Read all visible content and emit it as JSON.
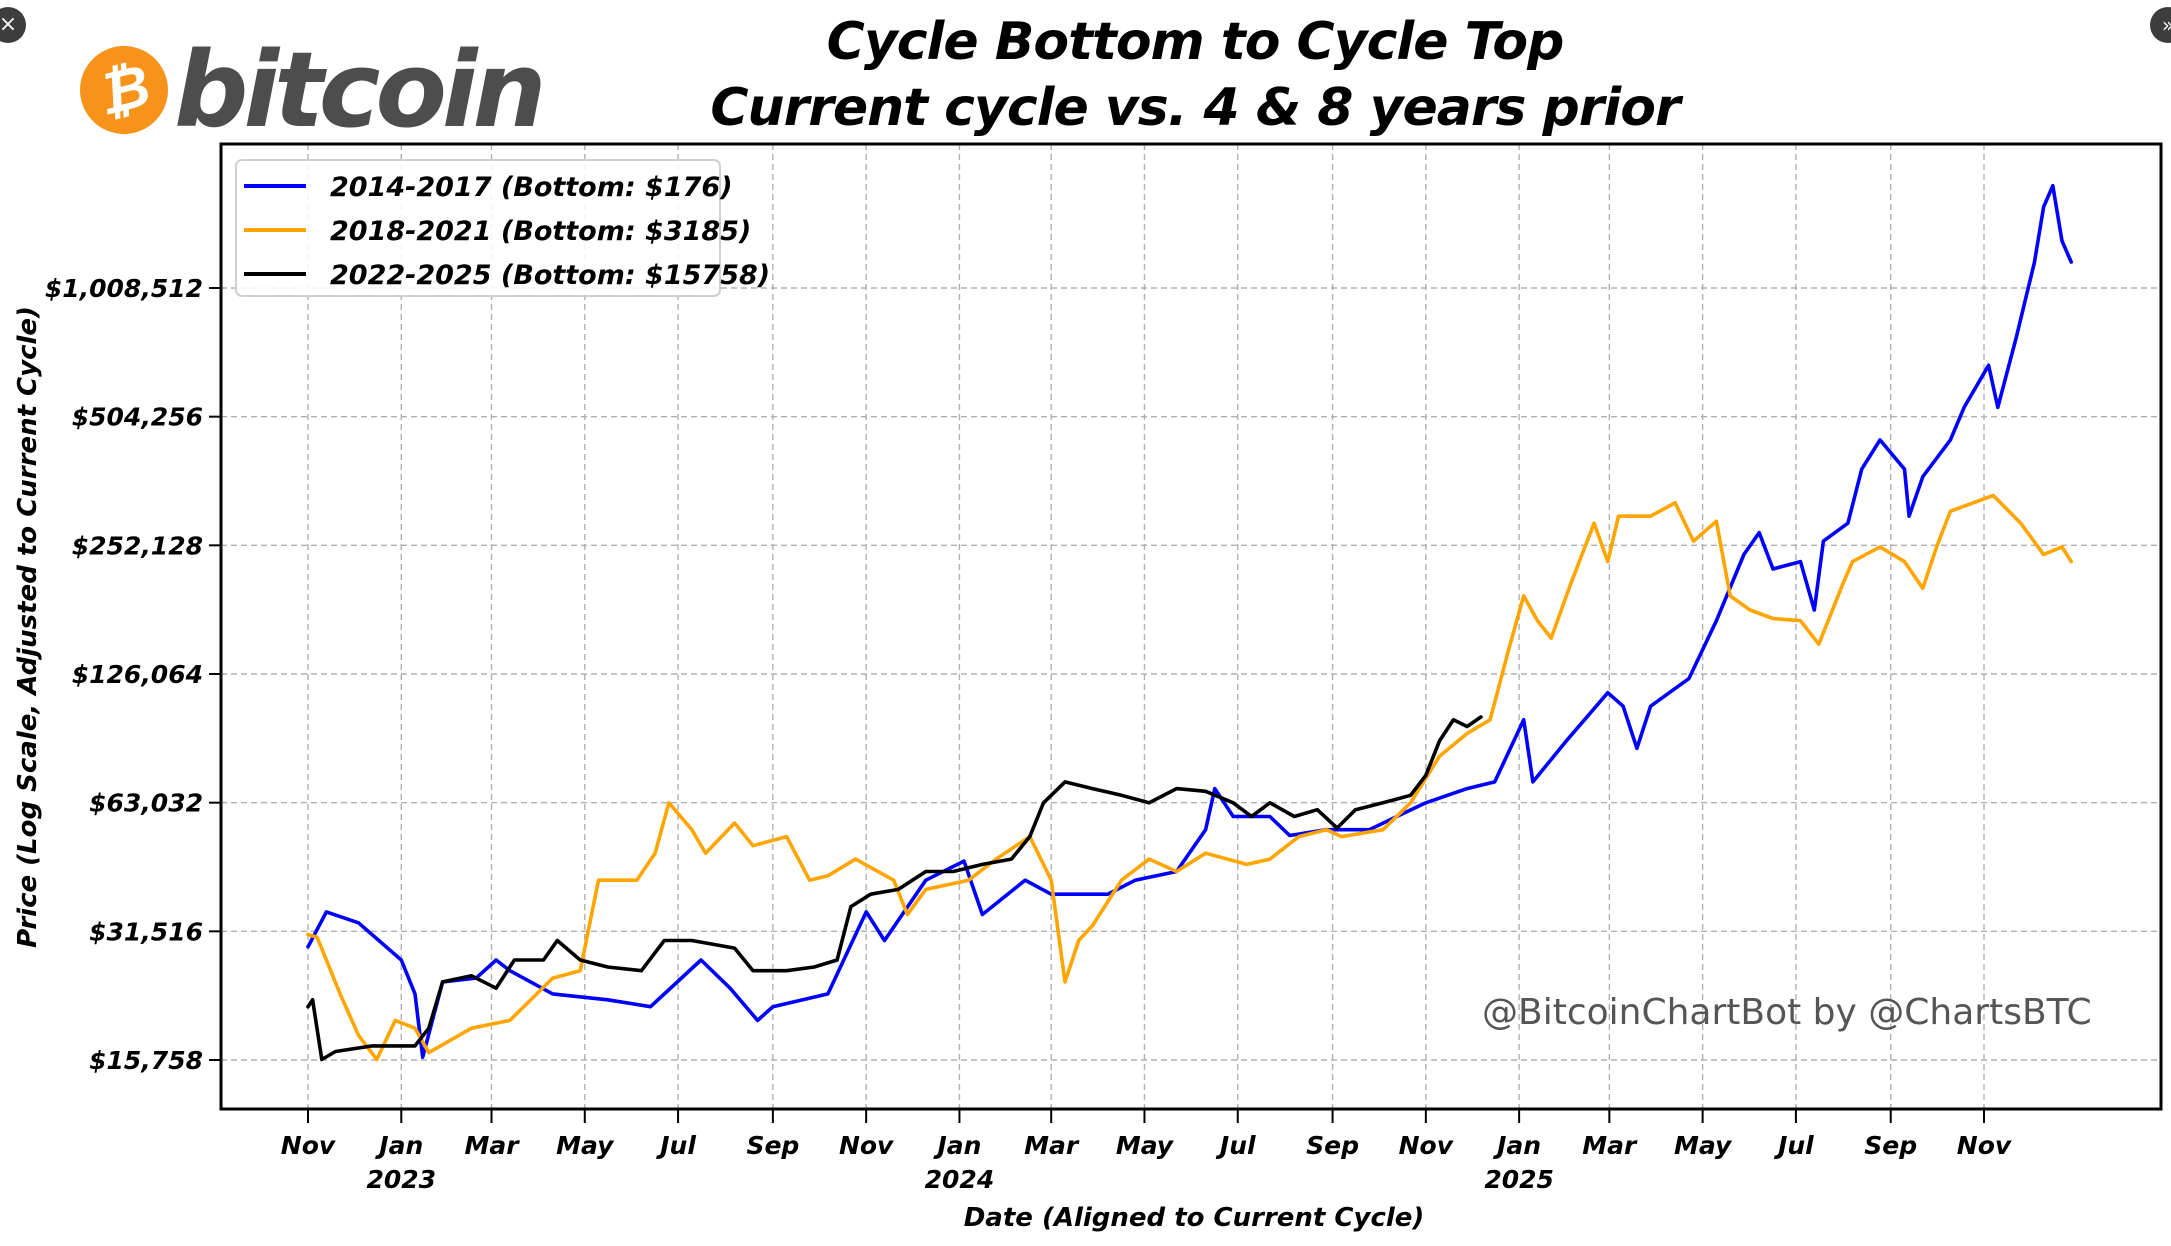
{
  "window_controls": {
    "close_icon": "×",
    "expand_icon": "»"
  },
  "logo": {
    "coin_symbol": "₿",
    "wordmark": "bitcoin",
    "coin_color": "#f7931a",
    "wordmark_color": "#4d4d4d"
  },
  "chart_data": {
    "type": "line",
    "title": "Cycle Bottom to Cycle Top",
    "subtitle": "Current cycle vs. 4 & 8 years prior",
    "xlabel": "Date (Aligned to Current Cycle)",
    "ylabel": "Price (Log Scale, Adjusted to Current Cycle)",
    "y_scale": "log2",
    "ylim": [
      13500,
      2150000
    ],
    "xlim": [
      "2022-09-15",
      "2026-02-10"
    ],
    "grid": true,
    "legend_position": "top-left",
    "watermark": "@BitcoinChartBot by @ChartsBTC",
    "y_ticks": [
      {
        "value": 15758,
        "label": "$15,758"
      },
      {
        "value": 31516,
        "label": "$31,516"
      },
      {
        "value": 63032,
        "label": "$63,032"
      },
      {
        "value": 126064,
        "label": "$126,064"
      },
      {
        "value": 252128,
        "label": "$252,128"
      },
      {
        "value": 504256,
        "label": "$504,256"
      },
      {
        "value": 1008512,
        "label": "$1,008,512"
      }
    ],
    "x_ticks": [
      {
        "date": "2022-11-01",
        "label": "Nov",
        "year": ""
      },
      {
        "date": "2023-01-01",
        "label": "Jan",
        "year": "2023"
      },
      {
        "date": "2023-03-01",
        "label": "Mar",
        "year": ""
      },
      {
        "date": "2023-05-01",
        "label": "May",
        "year": ""
      },
      {
        "date": "2023-07-01",
        "label": "Jul",
        "year": ""
      },
      {
        "date": "2023-09-01",
        "label": "Sep",
        "year": ""
      },
      {
        "date": "2023-11-01",
        "label": "Nov",
        "year": ""
      },
      {
        "date": "2024-01-01",
        "label": "Jan",
        "year": "2024"
      },
      {
        "date": "2024-03-01",
        "label": "Mar",
        "year": ""
      },
      {
        "date": "2024-05-01",
        "label": "May",
        "year": ""
      },
      {
        "date": "2024-07-01",
        "label": "Jul",
        "year": ""
      },
      {
        "date": "2024-09-01",
        "label": "Sep",
        "year": ""
      },
      {
        "date": "2024-11-01",
        "label": "Nov",
        "year": ""
      },
      {
        "date": "2025-01-01",
        "label": "Jan",
        "year": "2025"
      },
      {
        "date": "2025-03-01",
        "label": "Mar",
        "year": ""
      },
      {
        "date": "2025-05-01",
        "label": "May",
        "year": ""
      },
      {
        "date": "2025-07-01",
        "label": "Jul",
        "year": ""
      },
      {
        "date": "2025-09-01",
        "label": "Sep",
        "year": ""
      },
      {
        "date": "2025-11-01",
        "label": "Nov",
        "year": ""
      }
    ],
    "series": [
      {
        "name": "2014-2017 (Bottom: $176)",
        "color": "#0000ff",
        "points": [
          [
            "2022-11-01",
            29000
          ],
          [
            "2022-11-13",
            35000
          ],
          [
            "2022-12-04",
            33000
          ],
          [
            "2023-01-01",
            27000
          ],
          [
            "2023-01-10",
            22500
          ],
          [
            "2023-01-15",
            16000
          ],
          [
            "2023-01-28",
            24000
          ],
          [
            "2023-02-19",
            24500
          ],
          [
            "2023-03-04",
            27000
          ],
          [
            "2023-03-13",
            25500
          ],
          [
            "2023-04-10",
            22500
          ],
          [
            "2023-05-16",
            21800
          ],
          [
            "2023-06-13",
            21000
          ],
          [
            "2023-07-16",
            27000
          ],
          [
            "2023-08-04",
            23200
          ],
          [
            "2023-08-22",
            19500
          ],
          [
            "2023-09-01",
            21000
          ],
          [
            "2023-10-07",
            22500
          ],
          [
            "2023-11-01",
            35000
          ],
          [
            "2023-11-13",
            30000
          ],
          [
            "2023-12-10",
            41500
          ],
          [
            "2024-01-04",
            46000
          ],
          [
            "2024-01-16",
            34500
          ],
          [
            "2024-02-13",
            41500
          ],
          [
            "2024-03-01",
            38500
          ],
          [
            "2024-04-07",
            38500
          ],
          [
            "2024-04-25",
            41500
          ],
          [
            "2024-05-22",
            43500
          ],
          [
            "2024-06-10",
            54500
          ],
          [
            "2024-06-16",
            68000
          ],
          [
            "2024-06-28",
            58500
          ],
          [
            "2024-07-22",
            58500
          ],
          [
            "2024-08-04",
            52800
          ],
          [
            "2024-08-28",
            54500
          ],
          [
            "2024-09-25",
            54500
          ],
          [
            "2024-10-13",
            58500
          ],
          [
            "2024-11-01",
            63000
          ],
          [
            "2024-11-28",
            68000
          ],
          [
            "2024-12-16",
            70500
          ],
          [
            "2025-01-04",
            98500
          ],
          [
            "2025-01-10",
            70500
          ],
          [
            "2025-02-01",
            88000
          ],
          [
            "2025-02-28",
            114000
          ],
          [
            "2025-03-10",
            106000
          ],
          [
            "2025-03-19",
            84500
          ],
          [
            "2025-03-28",
            106000
          ],
          [
            "2025-04-22",
            123000
          ],
          [
            "2025-05-10",
            168000
          ],
          [
            "2025-05-28",
            240000
          ],
          [
            "2025-06-07",
            270000
          ],
          [
            "2025-06-16",
            222000
          ],
          [
            "2025-07-04",
            231000
          ],
          [
            "2025-07-13",
            178000
          ],
          [
            "2025-07-19",
            258000
          ],
          [
            "2025-08-04",
            284000
          ],
          [
            "2025-08-13",
            380000
          ],
          [
            "2025-08-25",
            445000
          ],
          [
            "2025-09-10",
            380000
          ],
          [
            "2025-09-13",
            295000
          ],
          [
            "2025-09-22",
            365000
          ],
          [
            "2025-10-10",
            445000
          ],
          [
            "2025-10-19",
            530000
          ],
          [
            "2025-11-04",
            665000
          ],
          [
            "2025-11-10",
            530000
          ],
          [
            "2025-11-22",
            770000
          ],
          [
            "2025-12-04",
            1160000
          ],
          [
            "2025-12-10",
            1560000
          ],
          [
            "2025-12-16",
            1750000
          ],
          [
            "2025-12-22",
            1300000
          ],
          [
            "2025-12-28",
            1160000
          ]
        ]
      },
      {
        "name": "2018-2021 (Bottom: $3185)",
        "color": "#ffa500",
        "points": [
          [
            "2022-11-01",
            31000
          ],
          [
            "2022-11-07",
            30500
          ],
          [
            "2022-11-22",
            22500
          ],
          [
            "2022-12-04",
            18000
          ],
          [
            "2022-12-16",
            15800
          ],
          [
            "2022-12-28",
            19500
          ],
          [
            "2023-01-10",
            18700
          ],
          [
            "2023-01-19",
            16400
          ],
          [
            "2023-02-16",
            18700
          ],
          [
            "2023-03-13",
            19500
          ],
          [
            "2023-04-10",
            24500
          ],
          [
            "2023-04-28",
            25500
          ],
          [
            "2023-05-10",
            41500
          ],
          [
            "2023-06-04",
            41500
          ],
          [
            "2023-06-16",
            48000
          ],
          [
            "2023-06-25",
            63000
          ],
          [
            "2023-07-10",
            54500
          ],
          [
            "2023-07-19",
            48000
          ],
          [
            "2023-08-07",
            56500
          ],
          [
            "2023-08-19",
            50000
          ],
          [
            "2023-09-10",
            52500
          ],
          [
            "2023-09-25",
            41500
          ],
          [
            "2023-10-07",
            42500
          ],
          [
            "2023-10-25",
            46500
          ],
          [
            "2023-11-19",
            41500
          ],
          [
            "2023-11-28",
            34500
          ],
          [
            "2023-12-10",
            39500
          ],
          [
            "2024-01-07",
            41500
          ],
          [
            "2024-01-25",
            46500
          ],
          [
            "2024-02-16",
            52500
          ],
          [
            "2024-03-01",
            41500
          ],
          [
            "2024-03-10",
            24000
          ],
          [
            "2024-03-19",
            30000
          ],
          [
            "2024-03-28",
            32500
          ],
          [
            "2024-04-16",
            41500
          ],
          [
            "2024-05-04",
            46500
          ],
          [
            "2024-05-22",
            43500
          ],
          [
            "2024-06-10",
            48000
          ],
          [
            "2024-07-07",
            45200
          ],
          [
            "2024-07-22",
            46500
          ],
          [
            "2024-08-10",
            52500
          ],
          [
            "2024-08-28",
            54500
          ],
          [
            "2024-09-07",
            52500
          ],
          [
            "2024-10-04",
            54500
          ],
          [
            "2024-10-22",
            63000
          ],
          [
            "2024-11-10",
            81000
          ],
          [
            "2024-11-28",
            91500
          ],
          [
            "2024-12-13",
            98500
          ],
          [
            "2024-12-25",
            143000
          ],
          [
            "2025-01-04",
            192000
          ],
          [
            "2025-01-13",
            168000
          ],
          [
            "2025-01-22",
            153000
          ],
          [
            "2025-02-04",
            206000
          ],
          [
            "2025-02-19",
            284000
          ],
          [
            "2025-02-28",
            231000
          ],
          [
            "2025-03-07",
            295000
          ],
          [
            "2025-03-28",
            295000
          ],
          [
            "2025-04-13",
            317000
          ],
          [
            "2025-04-25",
            258000
          ],
          [
            "2025-05-10",
            287000
          ],
          [
            "2025-05-19",
            192000
          ],
          [
            "2025-06-01",
            178000
          ],
          [
            "2025-06-16",
            170000
          ],
          [
            "2025-07-04",
            168000
          ],
          [
            "2025-07-16",
            148000
          ],
          [
            "2025-08-01",
            206000
          ],
          [
            "2025-08-07",
            231000
          ],
          [
            "2025-08-25",
            250000
          ],
          [
            "2025-09-10",
            231000
          ],
          [
            "2025-09-22",
            200000
          ],
          [
            "2025-10-01",
            250000
          ],
          [
            "2025-10-10",
            303000
          ],
          [
            "2025-10-25",
            317000
          ],
          [
            "2025-11-07",
            330000
          ],
          [
            "2025-11-25",
            284000
          ],
          [
            "2025-12-10",
            240000
          ],
          [
            "2025-12-22",
            250000
          ],
          [
            "2025-12-28",
            231000
          ]
        ]
      },
      {
        "name": "2022-2025 (Bottom: $15758)",
        "color": "#000000",
        "points": [
          [
            "2022-11-01",
            21000
          ],
          [
            "2022-11-04",
            21800
          ],
          [
            "2022-11-10",
            15800
          ],
          [
            "2022-11-19",
            16500
          ],
          [
            "2022-12-13",
            17000
          ],
          [
            "2023-01-10",
            17000
          ],
          [
            "2023-01-19",
            18700
          ],
          [
            "2023-01-28",
            24000
          ],
          [
            "2023-02-16",
            24800
          ],
          [
            "2023-03-04",
            23200
          ],
          [
            "2023-03-16",
            27000
          ],
          [
            "2023-04-04",
            27000
          ],
          [
            "2023-04-13",
            30000
          ],
          [
            "2023-04-28",
            27000
          ],
          [
            "2023-05-16",
            26000
          ],
          [
            "2023-06-07",
            25500
          ],
          [
            "2023-06-22",
            30000
          ],
          [
            "2023-07-10",
            30000
          ],
          [
            "2023-08-07",
            28800
          ],
          [
            "2023-08-19",
            25500
          ],
          [
            "2023-09-10",
            25500
          ],
          [
            "2023-09-28",
            26000
          ],
          [
            "2023-10-13",
            27000
          ],
          [
            "2023-10-22",
            36000
          ],
          [
            "2023-11-04",
            38500
          ],
          [
            "2023-11-22",
            39500
          ],
          [
            "2023-12-10",
            43500
          ],
          [
            "2023-12-28",
            43500
          ],
          [
            "2024-01-16",
            45200
          ],
          [
            "2024-02-04",
            46500
          ],
          [
            "2024-02-16",
            52500
          ],
          [
            "2024-02-25",
            63000
          ],
          [
            "2024-03-10",
            70500
          ],
          [
            "2024-03-28",
            68000
          ],
          [
            "2024-04-16",
            65600
          ],
          [
            "2024-05-04",
            63000
          ],
          [
            "2024-05-22",
            68000
          ],
          [
            "2024-06-10",
            67000
          ],
          [
            "2024-06-28",
            63000
          ],
          [
            "2024-07-10",
            58500
          ],
          [
            "2024-07-22",
            63000
          ],
          [
            "2024-08-07",
            58500
          ],
          [
            "2024-08-22",
            60700
          ],
          [
            "2024-09-04",
            55000
          ],
          [
            "2024-09-16",
            60700
          ],
          [
            "2024-10-04",
            63000
          ],
          [
            "2024-10-22",
            65600
          ],
          [
            "2024-11-01",
            73000
          ],
          [
            "2024-11-10",
            88000
          ],
          [
            "2024-11-19",
            98500
          ],
          [
            "2024-11-28",
            95000
          ],
          [
            "2024-12-07",
            100000
          ]
        ]
      }
    ]
  }
}
